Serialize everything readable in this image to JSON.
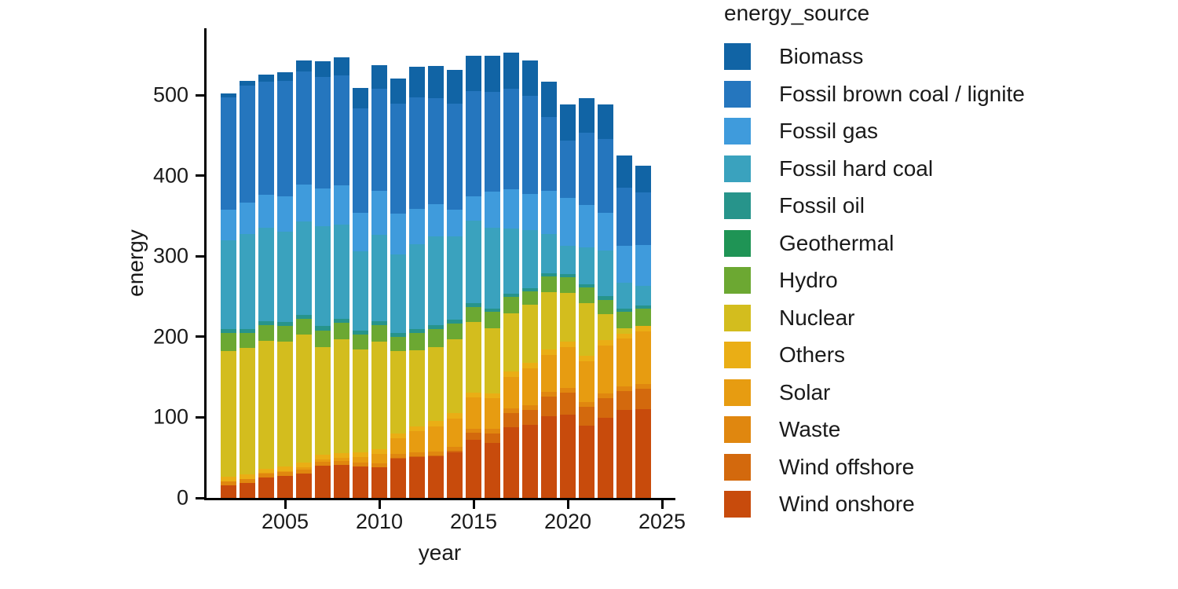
{
  "figure": {
    "background": "#ffffff",
    "axis_color": "#000000",
    "text_color": "#1a1a1a"
  },
  "axes": {
    "x_label": "year",
    "y_label": "energy"
  },
  "legend": {
    "title": "energy_source"
  },
  "chart_data": {
    "type": "bar",
    "stacked": true,
    "title": "",
    "xlabel": "year",
    "ylabel": "energy",
    "legend_title": "energy_source",
    "legend_position": "right",
    "grid": false,
    "x": [
      2002,
      2003,
      2004,
      2005,
      2006,
      2007,
      2008,
      2009,
      2010,
      2011,
      2012,
      2013,
      2014,
      2015,
      2016,
      2017,
      2018,
      2019,
      2020,
      2021,
      2022,
      2023,
      2024
    ],
    "x_ticks": [
      2005,
      2010,
      2015,
      2020,
      2025
    ],
    "y_ticks": [
      0,
      100,
      200,
      300,
      400,
      500
    ],
    "xlim": [
      2001,
      2025.8
    ],
    "ylim": [
      0,
      582
    ],
    "stack_order_bottom_to_top": [
      "Wind onshore",
      "Wind offshore",
      "Waste",
      "Solar",
      "Others",
      "Nuclear",
      "Hydro",
      "Geothermal",
      "Fossil oil",
      "Fossil hard coal",
      "Fossil gas",
      "Fossil brown coal / lignite",
      "Biomass"
    ],
    "series": [
      {
        "name": "Biomass",
        "color": "#1164A5",
        "values": [
          4.8,
          6.7,
          7.9,
          10.7,
          14,
          19.7,
          22.9,
          25.8,
          28.7,
          31.9,
          38,
          39.8,
          42,
          44.5,
          45,
          45,
          44,
          44.4,
          44.9,
          43,
          42.9,
          40,
          33
        ]
      },
      {
        "name": "Fossil brown coal / lignite",
        "color": "#2576BE",
        "values": [
          139.2,
          144.4,
          140.7,
          143.2,
          139.6,
          138.2,
          135.8,
          129.5,
          126.7,
          136.6,
          138.4,
          131.8,
          131,
          130,
          124,
          125,
          121.7,
          91.1,
          71,
          89.2,
          91,
          72,
          66
        ]
      },
      {
        "name": "Fossil gas",
        "color": "#3F9BDC",
        "values": [
          38,
          39,
          41,
          44,
          46,
          47,
          49,
          48,
          55,
          50,
          44,
          40,
          33,
          30,
          45,
          49,
          44.5,
          54,
          59,
          52.5,
          46.9,
          46,
          50
        ]
      },
      {
        "name": "Fossil hard coal",
        "color": "#3AA2BE",
        "values": [
          110,
          118,
          116,
          112,
          116,
          124,
          117,
          98,
          107,
          98,
          105,
          110,
          104,
          103,
          100,
          81,
          72.5,
          48.7,
          35.6,
          46.4,
          57.1,
          32,
          25
        ]
      },
      {
        "name": "Fossil oil",
        "color": "#27948B",
        "values": [
          5,
          5.2,
          5,
          5,
          5,
          5,
          5,
          4.8,
          4.8,
          4.5,
          4.5,
          4.4,
          4.3,
          4.2,
          4.2,
          3.6,
          4,
          4,
          3.7,
          3.9,
          4.1,
          3.9,
          3.8
        ]
      },
      {
        "name": "Geothermal",
        "color": "#1F9455",
        "values": [
          0,
          0,
          0,
          0,
          0,
          0,
          0.02,
          0.02,
          0.03,
          0.02,
          0.03,
          0.08,
          0.1,
          0.1,
          0.2,
          0.2,
          0.2,
          0.2,
          0.2,
          0.2,
          0.2,
          0.2,
          0.2
        ]
      },
      {
        "name": "Hydro",
        "color": "#6CA832",
        "values": [
          22.7,
          18.9,
          19.9,
          19.4,
          20,
          21.2,
          20.4,
          19,
          20.9,
          17.7,
          21.8,
          22.8,
          19.6,
          19,
          20.5,
          20.2,
          16.6,
          19.2,
          18.7,
          19.4,
          17.5,
          20,
          21
        ]
      },
      {
        "name": "Nuclear",
        "color": "#D3BD1E",
        "values": [
          156.3,
          156.4,
          158,
          154.6,
          158.7,
          133.2,
          140.9,
          127.7,
          133,
          102.2,
          94.1,
          92.1,
          92,
          87.1,
          80,
          72.2,
          71.9,
          71.1,
          60.9,
          65.4,
          32.8,
          6.7,
          0
        ]
      },
      {
        "name": "Others",
        "color": "#EAAE15",
        "values": [
          5.5,
          5.6,
          5.7,
          5.8,
          5.9,
          6,
          6,
          6,
          6.1,
          6.1,
          6.2,
          6.2,
          6.3,
          6.3,
          6.4,
          6.4,
          6.5,
          6.5,
          6.6,
          6.6,
          6.7,
          6.7,
          7
        ]
      },
      {
        "name": "Solar",
        "color": "#E79C11",
        "values": [
          0.2,
          0.3,
          0.6,
          1.3,
          2.2,
          3.1,
          4.4,
          6.6,
          11.7,
          19.3,
          26.4,
          31,
          34.9,
          38.7,
          38.1,
          39.4,
          45.8,
          46.4,
          50.6,
          50,
          59.1,
          59,
          65
        ]
      },
      {
        "name": "Waste",
        "color": "#E0870F",
        "values": [
          4.5,
          4.6,
          4.7,
          4.8,
          4.9,
          4.9,
          5,
          5,
          5.1,
          5.2,
          5.2,
          5.3,
          5.4,
          5.5,
          5.5,
          5.6,
          5.7,
          5.8,
          5.8,
          5.9,
          5.9,
          6,
          6
        ]
      },
      {
        "name": "Wind offshore",
        "color": "#D3690D",
        "values": [
          0,
          0,
          0,
          0,
          0,
          0,
          0,
          0.04,
          0.2,
          0.6,
          0.7,
          0.9,
          1.4,
          8.3,
          12.1,
          17.4,
          19.1,
          24.4,
          27.3,
          24,
          24.8,
          23.5,
          25.7
        ]
      },
      {
        "name": "Wind onshore",
        "color": "#C84B0C",
        "values": [
          15.8,
          18.9,
          25.5,
          27.2,
          30.7,
          39.7,
          40.6,
          38.6,
          37.8,
          48.9,
          50.7,
          51.7,
          57,
          72.3,
          68,
          88,
          90.5,
          101.2,
          103.7,
          89.5,
          99,
          109,
          110
        ]
      }
    ]
  }
}
